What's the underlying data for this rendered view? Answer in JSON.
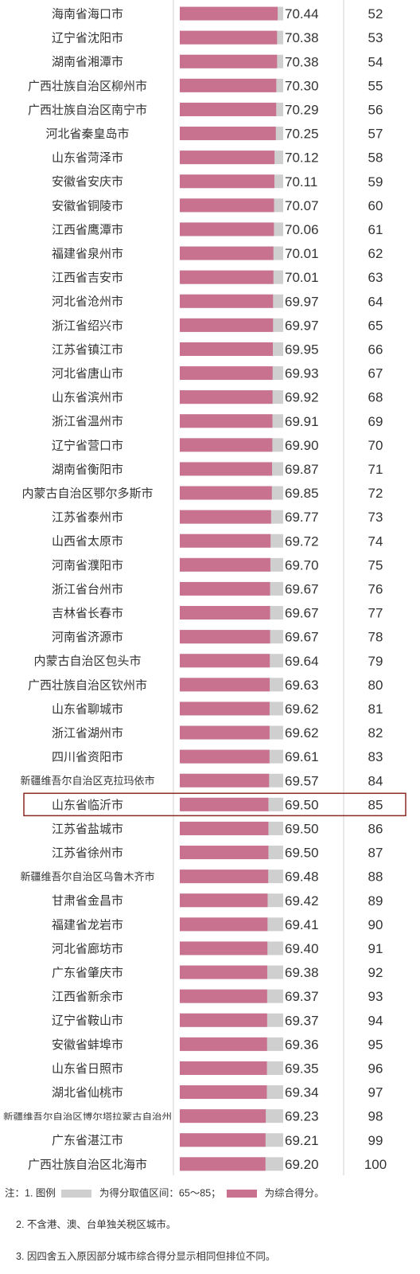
{
  "colors": {
    "score_bar": "#c9728f",
    "range_bar": "#cfcfcf",
    "highlight_box": "#8b2a22",
    "text": "#333333"
  },
  "chart_data": {
    "type": "bar",
    "orientation": "horizontal",
    "range": [
      65,
      85
    ],
    "highlight_rank": 85,
    "rows": [
      {
        "city": "海南省海口市",
        "score": 70.44,
        "rank": 52
      },
      {
        "city": "辽宁省沈阳市",
        "score": 70.38,
        "rank": 53
      },
      {
        "city": "湖南省湘潭市",
        "score": 70.38,
        "rank": 54
      },
      {
        "city": "广西壮族自治区柳州市",
        "score": 70.3,
        "rank": 55
      },
      {
        "city": "广西壮族自治区南宁市",
        "score": 70.29,
        "rank": 56
      },
      {
        "city": "河北省秦皇岛市",
        "score": 70.25,
        "rank": 57
      },
      {
        "city": "山东省菏泽市",
        "score": 70.12,
        "rank": 58
      },
      {
        "city": "安徽省安庆市",
        "score": 70.11,
        "rank": 59
      },
      {
        "city": "安徽省铜陵市",
        "score": 70.07,
        "rank": 60
      },
      {
        "city": "江西省鹰潭市",
        "score": 70.06,
        "rank": 61
      },
      {
        "city": "福建省泉州市",
        "score": 70.01,
        "rank": 62
      },
      {
        "city": "江西省吉安市",
        "score": 70.01,
        "rank": 63
      },
      {
        "city": "河北省沧州市",
        "score": 69.97,
        "rank": 64
      },
      {
        "city": "浙江省绍兴市",
        "score": 69.97,
        "rank": 65
      },
      {
        "city": "江苏省镇江市",
        "score": 69.95,
        "rank": 66
      },
      {
        "city": "河北省唐山市",
        "score": 69.93,
        "rank": 67
      },
      {
        "city": "山东省滨州市",
        "score": 69.92,
        "rank": 68
      },
      {
        "city": "浙江省温州市",
        "score": 69.91,
        "rank": 69
      },
      {
        "city": "辽宁省营口市",
        "score": 69.9,
        "rank": 70
      },
      {
        "city": "湖南省衡阳市",
        "score": 69.87,
        "rank": 71
      },
      {
        "city": "内蒙古自治区鄂尔多斯市",
        "score": 69.85,
        "rank": 72
      },
      {
        "city": "江苏省泰州市",
        "score": 69.77,
        "rank": 73
      },
      {
        "city": "山西省太原市",
        "score": 69.72,
        "rank": 74
      },
      {
        "city": "河南省濮阳市",
        "score": 69.7,
        "rank": 75
      },
      {
        "city": "浙江省台州市",
        "score": 69.67,
        "rank": 76
      },
      {
        "city": "吉林省长春市",
        "score": 69.67,
        "rank": 77
      },
      {
        "city": "河南省济源市",
        "score": 69.67,
        "rank": 78
      },
      {
        "city": "内蒙古自治区包头市",
        "score": 69.64,
        "rank": 79
      },
      {
        "city": "广西壮族自治区钦州市",
        "score": 69.63,
        "rank": 80
      },
      {
        "city": "山东省聊城市",
        "score": 69.62,
        "rank": 81
      },
      {
        "city": "浙江省湖州市",
        "score": 69.62,
        "rank": 82
      },
      {
        "city": "四川省资阳市",
        "score": 69.61,
        "rank": 83
      },
      {
        "city": "新疆维吾尔自治区克拉玛依市",
        "score": 69.57,
        "rank": 84
      },
      {
        "city": "山东省临沂市",
        "score": 69.5,
        "rank": 85
      },
      {
        "city": "江苏省盐城市",
        "score": 69.5,
        "rank": 86
      },
      {
        "city": "江苏省徐州市",
        "score": 69.5,
        "rank": 87
      },
      {
        "city": "新疆维吾尔自治区乌鲁木齐市",
        "score": 69.48,
        "rank": 88
      },
      {
        "city": "甘肃省金昌市",
        "score": 69.42,
        "rank": 89
      },
      {
        "city": "福建省龙岩市",
        "score": 69.41,
        "rank": 90
      },
      {
        "city": "河北省廊坊市",
        "score": 69.4,
        "rank": 91
      },
      {
        "city": "广东省肇庆市",
        "score": 69.38,
        "rank": 92
      },
      {
        "city": "江西省新余市",
        "score": 69.37,
        "rank": 93
      },
      {
        "city": "辽宁省鞍山市",
        "score": 69.37,
        "rank": 94
      },
      {
        "city": "安徽省蚌埠市",
        "score": 69.36,
        "rank": 95
      },
      {
        "city": "山东省日照市",
        "score": 69.35,
        "rank": 96
      },
      {
        "city": "湖北省仙桃市",
        "score": 69.34,
        "rank": 97
      },
      {
        "city": "新疆维吾尔自治区博尔塔拉蒙古自治州",
        "score": 69.23,
        "rank": 98
      },
      {
        "city": "广东省湛江市",
        "score": 69.21,
        "rank": 99
      },
      {
        "city": "广西壮族自治区北海市",
        "score": 69.2,
        "rank": 100
      }
    ]
  },
  "notes": {
    "line1_prefix": "注：1. 图例",
    "line1_range_text": "为得分取值区间：65～85；",
    "line1_score_text": "为综合得分。",
    "line2": "2. 不含港、澳、台单独关税区城市。",
    "line3": "3. 因四舍五入原因部分城市综合得分显示相同但排位不同。"
  }
}
